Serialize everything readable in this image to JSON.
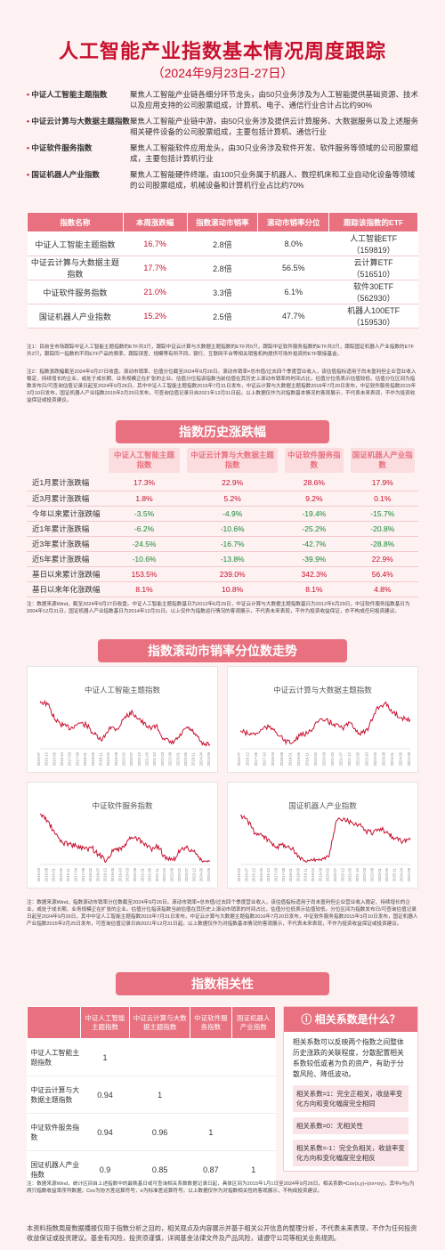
{
  "header": {
    "title": "人工智能产业指数基本情况周度跟踪",
    "subtitle": "（2024年9月23日-27日）"
  },
  "intro": [
    {
      "name": "中证人工智能主题指数",
      "desc": "聚焦人工智能产业链各细分环节龙头，由50只业务涉及为人工智能提供基础资源、技术以及应用支持的公司股票组成，计算机、电子、通信行业合计占比约90%"
    },
    {
      "name": "中证云计算与大数据主题指数",
      "desc": "聚焦人工智能产业链中游，由50只业务涉及提供云计算服务、大数据服务以及上述服务相关硬件设备的公司股票组成，主要包括计算机、通信行业"
    },
    {
      "name": "中证软件服务指数",
      "desc": "聚焦人工智能软件应用龙头，由30只业务涉及软件开发、软件服务等领域的公司股票组成，主要包括计算机行业"
    },
    {
      "name": "国证机器人产业指数",
      "desc": "聚焦人工智能硬件终端，由100只业务属于机器人、数控机床和工业自动化设备等领域的公司股票组成，机械设备和计算机行业占比约70%"
    }
  ],
  "table1": {
    "headers": [
      "指数名称",
      "本周涨跌幅",
      "指数滚动市销率",
      "滚动市销率分位",
      "跟踪该指数的ETF"
    ],
    "rows": [
      {
        "name": "中证人工智能主题指数",
        "chg": "16.7%",
        "ps": "2.8倍",
        "pct": "8.0%",
        "etf1": "人工智能ETF",
        "etf2": "（159819）"
      },
      {
        "name": "中证云计算与大数据主题指数",
        "chg": "17.7%",
        "ps": "2.8倍",
        "pct": "56.5%",
        "etf1": "云计算ETF",
        "etf2": "（516510）"
      },
      {
        "name": "中证软件服务指数",
        "chg": "21.0%",
        "ps": "3.3倍",
        "pct": "6.1%",
        "etf1": "软件30ETF",
        "etf2": "（562930）"
      },
      {
        "name": "国证机器人产业指数",
        "chg": "15.2%",
        "ps": "2.5倍",
        "pct": "47.7%",
        "etf1": "机器人100ETF",
        "etf2": "（159530）"
      }
    ]
  },
  "notes": {
    "n1": "注1：目前全市场跟踪中证人工智能主题指数的ETF共3只，跟踪中证云计算与大数据主题指数的ETF共5只，跟踪中证软件服务指数的ETF共3只，跟踪国证机器人产业指数的ETF共2只，跟踪同一指数的不同ETF产品的费率、跟踪误差、规模等有所不同。银行、互联网平台等相关销售机构提供可场外投资的ETF联接基金。",
    "n2": "注2：指数涨跌幅截至2024年9月27日收盘。滚动市销率、估值分位截至2024年9月26日。滚动市销率=总市值/过去四个季度营业收入，该估值指标适用于尚未盈利但企业营业收入稳定、持续增长的企业，或处于成长期、业务规模正在扩张的企业。估值分位指该指数当前估值在其历史上滚动市销率的时间占比，估值分位低表示估值较低。估值分位区间为指数发布日/可查询估值记录日起至2024年9月26日，其中中证人工智能主题指数2015年7月31日发布，中证云计算与大数据主题指数2016年7月20日发布，中证软件服务指数2015年3月10日发布，国证机器人产业指数2015年2月25日发布，可查询估值记录日自2021年12月31日起。以上数据仅作为对指数基本情况的客观展示，不代表未来表现，不作为投资收益保证或投资建议。",
    "n3": "注：数据来源Wind，截至2024年9月27日收盘。中证人工智能主题指数基日为2012年6月29日，中证云计算与大数据主题指数基日为2012年6月29日，中证软件服务指数基日为2004年12月31日，国证机器人产业指数基日为2014年12月31日。以上仅作为指数运行情况的客观展示，不代表未来表现，不作为投资收益保证，亦不构成任何投资建议。",
    "n4": "注：数据来源Wind，指数滚动市销率分位数截至2024年9月26日。滚动市销率=总市值/过去四个季度营业收入，该估值指标适用于尚未盈利但企业营业收入稳定、持续增长的企业，或处于成长期、业务规模正在扩张的企业。估值分位指该指数当前估值在其历史上滚动市销率的时间占比，估值分位低表示估值较低。分位区间为指数发布日/可查询估值记录日起至2024年9月26日，其中中证人工智能主题指数2015年7月31日发布，中证云计算与大数据主题指数2016年7月20日发布，中证软件服务指数2015年3月10日发布，国证机器人产业指数2015年2月25日发布，可查询估值记录日自2021年12月31日起。以上数据仅作为对指数基本情况的客观展示，不代表未来表现，不作为投资收益保证或投资建议。",
    "n5": "注：数据来源Wind，统计区间自上述指数中的最晚基日或可查询相关系数数据记录日起，具体区间为2015年1月1日至2024年9月26日，相关系数=Cov(x,y)÷(σx×σy)，其中x与y为两只指数收益率序列数据，Cov为协方差运算符号，σ为标准差运算符号。以上数据仅作为对指数相关性的客观展示，不构成投资建议。"
  },
  "section_titles": {
    "history": "指数历史涨跌幅",
    "ps_trend": "指数滚动市销率分位数走势",
    "corr": "指数相关性"
  },
  "table2": {
    "headers": [
      "中证人工智能主题指数",
      "中证云计算与大数据主题指数",
      "中证软件服务指数",
      "国证机器人产业指数"
    ],
    "rows": [
      {
        "label": "近1月累计涨跌幅",
        "v": [
          "17.3%",
          "22.9%",
          "28.6%",
          "17.9%"
        ],
        "neg": [
          false,
          false,
          false,
          false
        ]
      },
      {
        "label": "近3月累计涨跌幅",
        "v": [
          "1.8%",
          "5.2%",
          "9.2%",
          "0.1%"
        ],
        "neg": [
          false,
          false,
          false,
          false
        ]
      },
      {
        "label": "今年以来累计涨跌幅",
        "v": [
          "-3.5%",
          "-4.9%",
          "-19.4%",
          "-15.7%"
        ],
        "neg": [
          true,
          true,
          true,
          true
        ]
      },
      {
        "label": "近1年累计涨跌幅",
        "v": [
          "-6.2%",
          "-10.6%",
          "-25.2%",
          "-20.8%"
        ],
        "neg": [
          true,
          true,
          true,
          true
        ]
      },
      {
        "label": "近3年累计涨跌幅",
        "v": [
          "-24.5%",
          "-16.7%",
          "-42.7%",
          "-28.8%"
        ],
        "neg": [
          true,
          true,
          true,
          true
        ]
      },
      {
        "label": "近5年累计涨跌幅",
        "v": [
          "-10.6%",
          "-13.8%",
          "-39.9%",
          "22.9%"
        ],
        "neg": [
          true,
          true,
          true,
          false
        ]
      },
      {
        "label": "基日以来累计涨跌幅",
        "v": [
          "153.5%",
          "239.0%",
          "342.3%",
          "56.4%"
        ],
        "neg": [
          false,
          false,
          false,
          false
        ]
      },
      {
        "label": "基日以来年化涨跌幅",
        "v": [
          "8.1%",
          "10.8%",
          "8.1%",
          "4.8%"
        ],
        "neg": [
          false,
          false,
          false,
          false
        ]
      }
    ]
  },
  "chart_data": [
    {
      "type": "line",
      "title": "中证人工智能主题指数",
      "x": [
        "2015-07",
        "2015-12",
        "2016-05",
        "2016-10",
        "2017-03",
        "2017-08",
        "2018-01",
        "2018-06",
        "2018-11",
        "2019-04",
        "2019-09",
        "2020-02",
        "2020-07",
        "2020-12",
        "2021-05",
        "2021-10",
        "2022-03",
        "2022-08",
        "2023-01",
        "2023-06",
        "2023-11",
        "2024-04",
        "2024-09"
      ],
      "values": [
        0.92,
        0.86,
        0.55,
        0.45,
        0.4,
        0.5,
        0.46,
        0.28,
        0.15,
        0.42,
        0.38,
        0.62,
        0.7,
        0.55,
        0.4,
        0.45,
        0.2,
        0.1,
        0.22,
        0.42,
        0.3,
        0.08,
        0.08
      ],
      "ylim": [
        0,
        1
      ]
    },
    {
      "type": "line",
      "title": "中证云计算与大数据主题指数",
      "x": [
        "2016-07",
        "2016-12",
        "2017-05",
        "2017-10",
        "2018-03",
        "2018-08",
        "2019-01",
        "2019-06",
        "2019-11",
        "2020-04",
        "2020-09",
        "2021-02",
        "2021-07",
        "2021-12",
        "2022-05",
        "2022-10",
        "2023-03",
        "2023-08",
        "2024-01",
        "2024-06",
        "2024-09"
      ],
      "values": [
        0.35,
        0.28,
        0.3,
        0.42,
        0.38,
        0.18,
        0.1,
        0.25,
        0.3,
        0.52,
        0.55,
        0.48,
        0.4,
        0.5,
        0.3,
        0.35,
        0.78,
        0.88,
        0.7,
        0.6,
        0.565
      ],
      "ylim": [
        0,
        1
      ]
    },
    {
      "type": "line",
      "title": "中证软件服务指数",
      "x": [
        "2015-03",
        "2015-08",
        "2016-01",
        "2016-06",
        "2016-11",
        "2017-04",
        "2017-09",
        "2018-02",
        "2018-07",
        "2018-12",
        "2019-05",
        "2019-10",
        "2020-03",
        "2020-08",
        "2021-01",
        "2021-06",
        "2021-11",
        "2022-04",
        "2022-09",
        "2023-02",
        "2023-07",
        "2023-12",
        "2024-05",
        "2024-09"
      ],
      "values": [
        0.98,
        0.85,
        0.6,
        0.42,
        0.4,
        0.35,
        0.3,
        0.32,
        0.18,
        0.08,
        0.3,
        0.28,
        0.48,
        0.52,
        0.4,
        0.3,
        0.36,
        0.1,
        0.08,
        0.28,
        0.32,
        0.22,
        0.05,
        0.06
      ],
      "ylim": [
        0,
        1
      ]
    },
    {
      "type": "line",
      "title": "国证机器人产业指数",
      "x": [
        "2015-02",
        "2015-07",
        "2015-12",
        "2016-05",
        "2016-10",
        "2017-03",
        "2017-08",
        "2018-01",
        "2018-06",
        "2018-11",
        "2019-04",
        "2019-09",
        "2020-02",
        "2020-07",
        "2020-12",
        "2021-05",
        "2021-10",
        "2022-03",
        "2022-08",
        "2023-01",
        "2023-06",
        "2023-11",
        "2024-04",
        "2024-09"
      ],
      "values": [
        0.95,
        0.85,
        0.6,
        0.55,
        0.45,
        0.35,
        0.38,
        0.3,
        0.15,
        0.05,
        0.12,
        0.08,
        0.15,
        0.85,
        0.9,
        0.82,
        0.78,
        0.65,
        0.62,
        0.7,
        0.6,
        0.5,
        0.45,
        0.477
      ],
      "ylim": [
        0,
        1
      ]
    }
  ],
  "table3": {
    "headers": [
      "",
      "中证人工智能主题指数",
      "中证云计算与大数据主题指数",
      "中证软件服务指数",
      "国证机器人产业指数"
    ],
    "rows": [
      {
        "label": "中证人工智能主题指数",
        "v": [
          "1",
          "",
          "",
          ""
        ]
      },
      {
        "label": "中证云计算与大数据主题指数",
        "v": [
          "0.94",
          "1",
          "",
          ""
        ]
      },
      {
        "label": "中证软件服务指数",
        "v": [
          "0.94",
          "0.96",
          "1",
          ""
        ]
      },
      {
        "label": "国证机器人产业指数",
        "v": [
          "0.9",
          "0.85",
          "0.87",
          "1"
        ]
      }
    ]
  },
  "corr_box": {
    "title": "相关系数是什么？",
    "body": "相关系数可以反映两个指数之间整体历史涨跌的关联程度，分散配置相关系数较低或者为负的资产，有助于分散风险、降低波动。",
    "b1": "相关系数=1：完全正相关，收益率变化方向和变化幅度完全相同",
    "b2": "相关系数=0：无相关性",
    "b3": "相关系数=-1：完全负相关，收益率变化方向和变化幅度完全相反"
  },
  "footer": "本资料指数周度数据播报仅用于指数分析之目的，相关观点及内容展示并基于相关公开信息的整理分析，不代表未来表现，不作为任何投资收益保证或投资建议。基金有风险，投资须谨慎，详阅基金法律文件及产品风险，请遵守公司等相关业务规则。",
  "colors": {
    "accent": "#e8707f",
    "brand_red": "#c8102e",
    "line": "#c8102e"
  }
}
